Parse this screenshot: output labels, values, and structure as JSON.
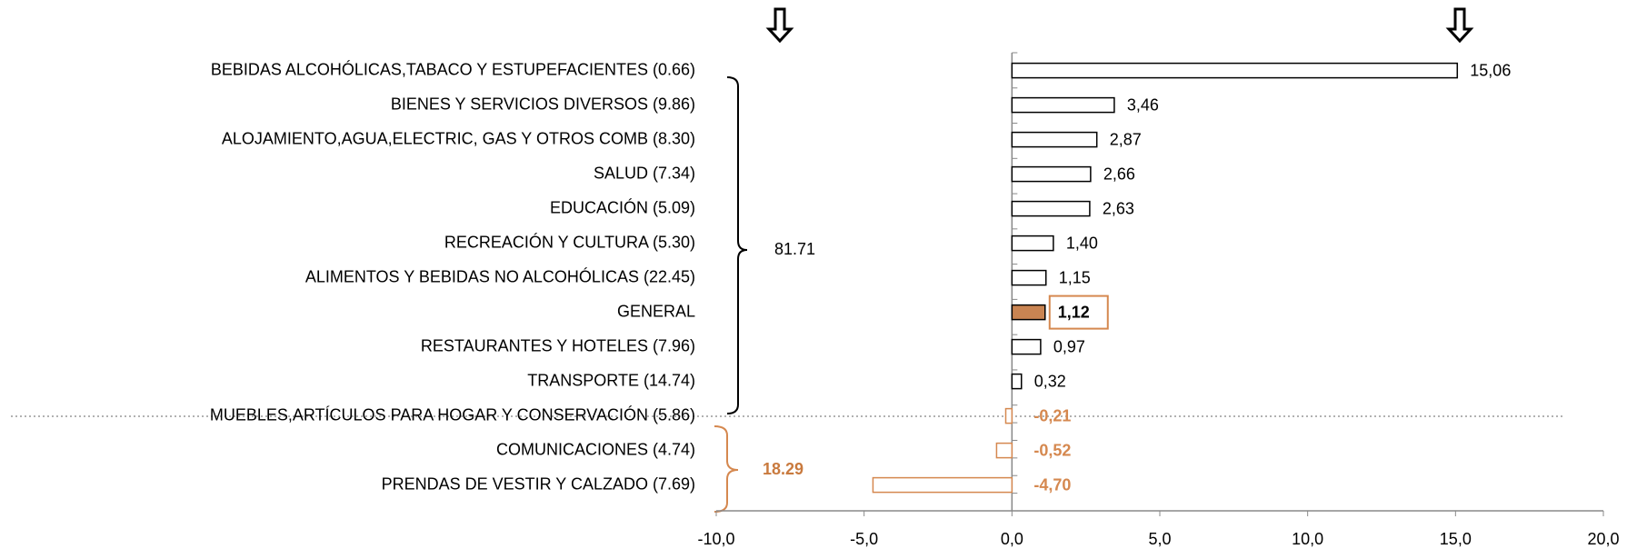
{
  "chart_data": {
    "type": "hbar",
    "categories": [
      "BEBIDAS ALCOHÓLICAS,TABACO Y ESTUPEFACIENTES (0.66)",
      "BIENES Y SERVICIOS DIVERSOS (9.86)",
      "ALOJAMIENTO,AGUA,ELECTRIC, GAS Y OTROS COMB (8.30)",
      "SALUD (7.34)",
      "EDUCACIÓN (5.09)",
      "RECREACIÓN Y CULTURA (5.30)",
      "ALIMENTOS Y BEBIDAS NO ALCOHÓLICAS (22.45)",
      "GENERAL",
      "RESTAURANTES Y HOTELES (7.96)",
      "TRANSPORTE (14.74)",
      "MUEBLES,ARTÍCULOS PARA HOGAR Y CONSERVACIÓN (5.86)",
      "COMUNICACIONES (4.74)",
      "PRENDAS DE VESTIR Y CALZADO (7.69)"
    ],
    "values": [
      15.06,
      3.46,
      2.87,
      2.66,
      2.63,
      1.4,
      1.15,
      1.12,
      0.97,
      0.32,
      -0.21,
      -0.52,
      -4.7
    ],
    "value_labels": [
      "15,06",
      "3,46",
      "2,87",
      "2,66",
      "2,63",
      "1,40",
      "1,15",
      "1,12",
      "0,97",
      "0,32",
      "-0,21",
      "-0,52",
      "-4,70"
    ],
    "stroke_colors": [
      "#000000",
      "#000000",
      "#000000",
      "#000000",
      "#000000",
      "#000000",
      "#000000",
      "#000000",
      "#000000",
      "#000000",
      "#d5884f",
      "#d5884f",
      "#d5884f"
    ],
    "fill_colors": [
      "#ffffff",
      "#ffffff",
      "#ffffff",
      "#ffffff",
      "#ffffff",
      "#ffffff",
      "#ffffff",
      "#c98452",
      "#ffffff",
      "#ffffff",
      "#ffffff",
      "#ffffff",
      "#ffffff"
    ],
    "xlim": [
      -10,
      20
    ],
    "xticks": [
      {
        "value": -10,
        "label": "-10,0"
      },
      {
        "value": -5,
        "label": "-5,0"
      },
      {
        "value": 0,
        "label": "0,0"
      },
      {
        "value": 5,
        "label": "5,0"
      },
      {
        "value": 10,
        "label": "10,0"
      },
      {
        "value": 15,
        "label": "15,0"
      },
      {
        "value": 20,
        "label": "20,0"
      }
    ],
    "annotations": [
      "81.71",
      "18.29"
    ]
  }
}
